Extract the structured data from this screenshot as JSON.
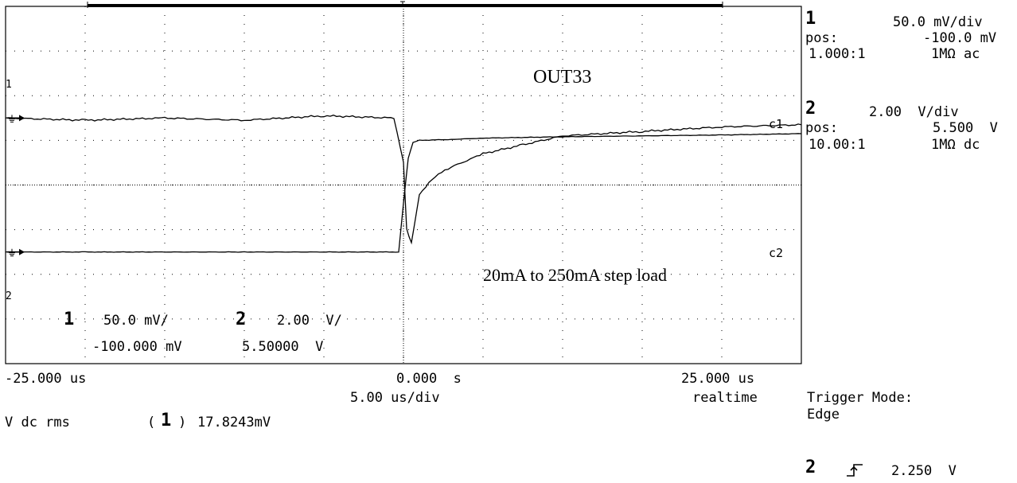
{
  "chart_data": {
    "type": "line",
    "title": "",
    "x_unit": "us",
    "xlim": [
      -25,
      25
    ],
    "x_divisions": 10,
    "y_divisions": 8,
    "grid": true,
    "annotations": [
      "OUT33",
      "20mA to 250mA step load"
    ],
    "series": [
      {
        "name": "c1",
        "channel": "1",
        "x": [
          -25,
          -20,
          -15,
          -10,
          -5,
          -0.6,
          0,
          0.2,
          0.5,
          1,
          2,
          3,
          5,
          7.5,
          10,
          15,
          20,
          25
        ],
        "values": [
          1.5,
          1.45,
          1.5,
          1.45,
          1.55,
          1.5,
          0.5,
          -1.0,
          -1.3,
          -0.2,
          0.2,
          0.4,
          0.7,
          0.9,
          1.1,
          1.2,
          1.3,
          1.35
        ]
      },
      {
        "name": "c2",
        "channel": "2",
        "x": [
          -25,
          -20,
          -10,
          -0.3,
          0,
          0.3,
          0.6,
          1,
          3,
          5,
          10,
          15,
          20,
          25
        ],
        "values": [
          -1.5,
          -1.5,
          -1.5,
          -1.5,
          -0.4,
          0.6,
          0.95,
          1.0,
          1.02,
          1.05,
          1.08,
          1.1,
          1.12,
          1.15
        ]
      }
    ]
  },
  "x_labels": {
    "left": "-25.000 us",
    "center": "0.000  s",
    "right": "25.000 us"
  },
  "timebase": "5.00 us/div",
  "acq_mode": "realtime",
  "trace_labels": {
    "c1": "c1",
    "c2": "c2"
  },
  "markers": {
    "ch1": "1",
    "ch2": "2"
  },
  "screen_readout": {
    "ch1_num": "1",
    "ch1_scale": "50.0 mV/",
    "ch2_num": "2",
    "ch2_scale": "2.00  V/",
    "ch1_offset": "-100.000 mV",
    "ch2_offset": "5.50000  V"
  },
  "channels": [
    {
      "num": "1",
      "scale": "50.0 mV/div",
      "pos_label": "pos:",
      "pos": "-100.0 mV",
      "probe": "1.000:1",
      "coupling": "1MΩ ac"
    },
    {
      "num": "2",
      "scale": "2.00  V/div",
      "pos_label": "pos:",
      "pos": "5.500  V",
      "probe": "10.00:1",
      "coupling": "1MΩ dc"
    }
  ],
  "measurement": {
    "label": "V dc rms",
    "channel": "1",
    "value": "17.8243mV"
  },
  "trigger": {
    "mode_label": "Trigger Mode:",
    "mode": "Edge",
    "source": "2",
    "level": "2.250  V"
  }
}
